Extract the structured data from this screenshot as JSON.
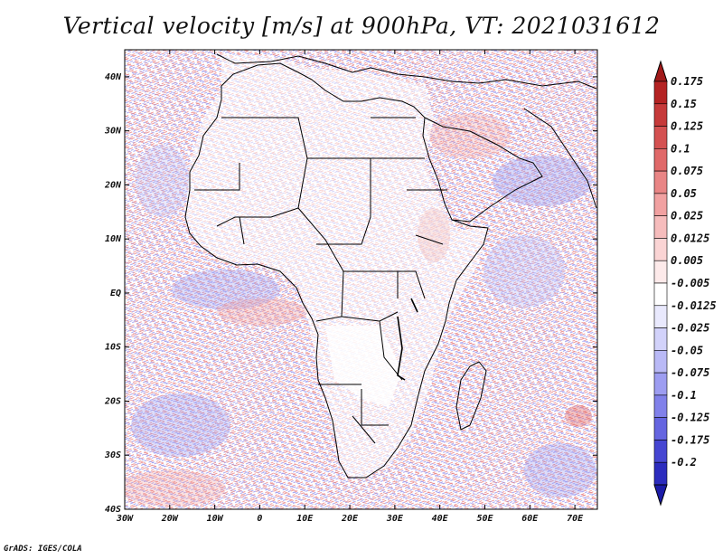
{
  "title": "Vertical velocity [m/s] at 900hPa, VT: 2021031612",
  "credit": "GrADS: IGES/COLA",
  "map": {
    "lon_range": [
      -30,
      75
    ],
    "lat_range": [
      -40,
      45
    ],
    "lon_ticks": [
      {
        "value": -30,
        "label": "30W"
      },
      {
        "value": -20,
        "label": "20W"
      },
      {
        "value": -10,
        "label": "10W"
      },
      {
        "value": 0,
        "label": "0"
      },
      {
        "value": 10,
        "label": "10E"
      },
      {
        "value": 20,
        "label": "20E"
      },
      {
        "value": 30,
        "label": "30E"
      },
      {
        "value": 40,
        "label": "40E"
      },
      {
        "value": 50,
        "label": "50E"
      },
      {
        "value": 60,
        "label": "60E"
      },
      {
        "value": 70,
        "label": "70E"
      }
    ],
    "lat_ticks": [
      {
        "value": 40,
        "label": "40N"
      },
      {
        "value": 30,
        "label": "30N"
      },
      {
        "value": 20,
        "label": "20N"
      },
      {
        "value": 10,
        "label": "10N"
      },
      {
        "value": 0,
        "label": "EQ"
      },
      {
        "value": -10,
        "label": "10S"
      },
      {
        "value": -20,
        "label": "20S"
      },
      {
        "value": -30,
        "label": "30S"
      },
      {
        "value": -40,
        "label": "40S"
      }
    ]
  },
  "colorbar": {
    "levels": [
      {
        "label": "0.175",
        "color": "#b42323"
      },
      {
        "label": "0.15",
        "color": "#c63a3a"
      },
      {
        "label": "0.125",
        "color": "#d45151"
      },
      {
        "label": "0.1",
        "color": "#e06969"
      },
      {
        "label": "0.075",
        "color": "#e98585"
      },
      {
        "label": "0.05",
        "color": "#f1a1a1"
      },
      {
        "label": "0.025",
        "color": "#f6bcbc"
      },
      {
        "label": "0.0125",
        "color": "#fad4d4"
      },
      {
        "label": "0.005",
        "color": "#fdeaea"
      },
      {
        "label": "-0.005",
        "color": "#ffffff"
      },
      {
        "label": "-0.0125",
        "color": "#e9e9fd"
      },
      {
        "label": "-0.025",
        "color": "#d2d2fa"
      },
      {
        "label": "-0.05",
        "color": "#b9b9f6"
      },
      {
        "label": "-0.075",
        "color": "#9d9df1"
      },
      {
        "label": "-0.1",
        "color": "#8181ea"
      },
      {
        "label": "-0.125",
        "color": "#6565e0"
      },
      {
        "label": "-0.175",
        "color": "#4646d2"
      },
      {
        "label": "-0.2",
        "color": "#2c2cbe"
      }
    ],
    "top_color": "#a11a1a",
    "bottom_color": "#1c1ca8"
  }
}
